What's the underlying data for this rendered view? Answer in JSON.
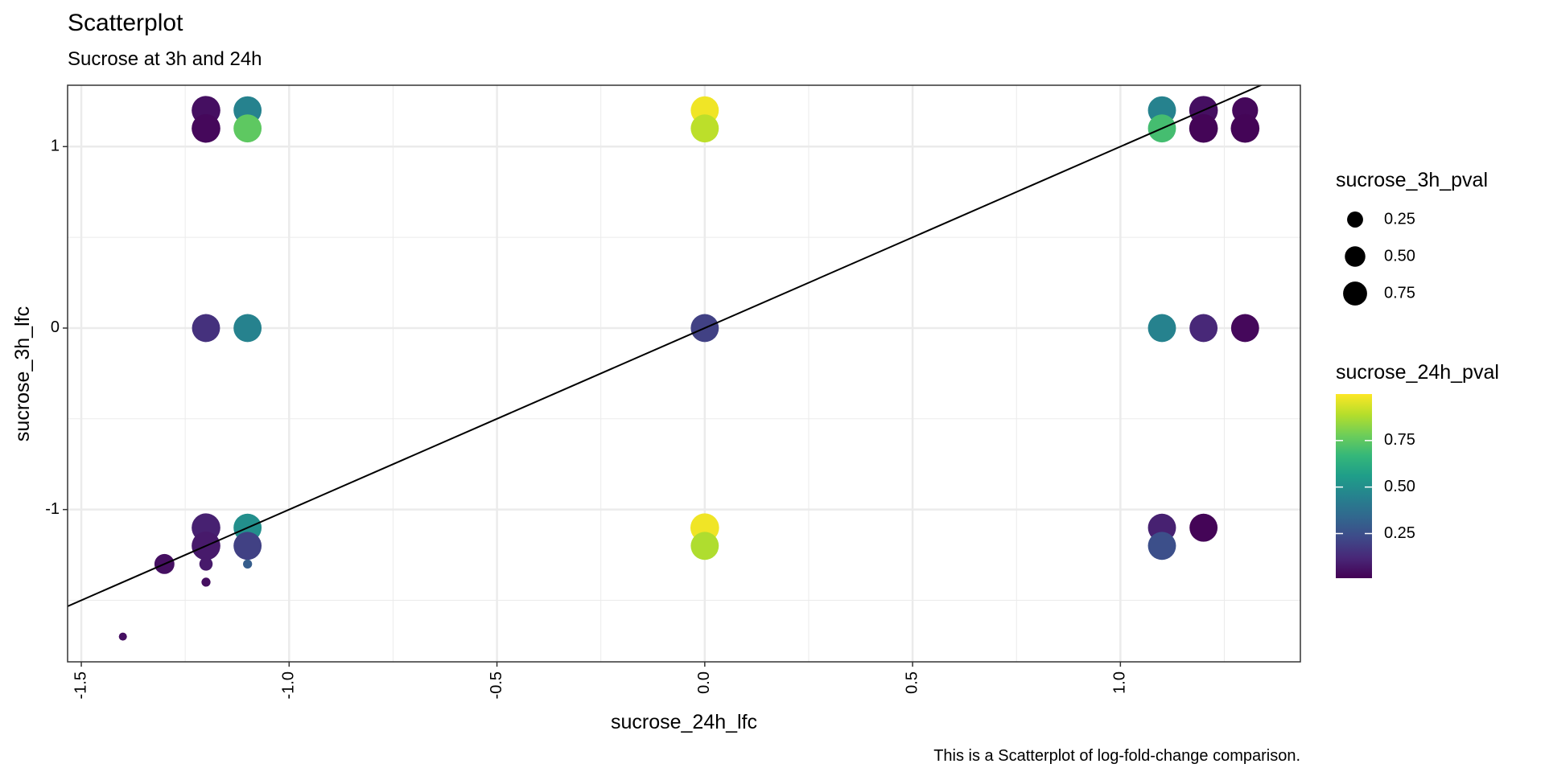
{
  "chart_data": {
    "type": "scatter",
    "title": "Scatterplot",
    "subtitle": "Sucrose at 3h and 24h",
    "x_label": "sucrose_24h_lfc",
    "y_label": "sucrose_3h_lfc",
    "caption": "This is a Scatterplot of log-fold-change comparison.",
    "xlim": [
      -1.533,
      1.433
    ],
    "ylim": [
      -1.839,
      1.338
    ],
    "xticks": [
      -1.5,
      {
        "value": -1.0,
        "label": "-1.0"
      },
      -0.5,
      {
        "value": 0.0,
        "label": "0.0"
      },
      0.5,
      {
        "value": 1.0,
        "label": "1.0"
      }
    ],
    "yticks": [
      -1,
      0,
      1
    ],
    "xminorticks": [
      -1.25,
      -0.75,
      -0.25,
      0.25,
      0.75,
      1.25
    ],
    "yminorticks": [
      -1.5,
      -0.5,
      0.5
    ],
    "grid": true,
    "reference_line": {
      "slope": 1,
      "intercept": 0,
      "color": "#000000"
    },
    "series": [
      {
        "x": [
          -1.2,
          -1.2,
          -1.1,
          -1.1,
          0,
          0,
          1.1,
          1.1,
          1.2,
          1.2,
          1.3,
          1.3,
          -1.2,
          -1.1,
          0,
          1.1,
          1.2,
          1.3,
          -1.2,
          -1.2,
          -1.1,
          -1.1,
          -1.3,
          -1.2,
          -1.2,
          -1.1,
          -1.4,
          0,
          0,
          1.1,
          1.1,
          1.2
        ],
        "values": [
          1.2,
          1.1,
          1.2,
          1.1,
          1.2,
          1.1,
          1.2,
          1.1,
          1.2,
          1.1,
          1.2,
          1.1,
          0,
          0,
          0,
          0,
          0,
          0,
          -1.1,
          -1.2,
          -1.1,
          -1.2,
          -1.3,
          -1.3,
          -1.4,
          -1.3,
          -1.7,
          -1.1,
          -1.2,
          -1.1,
          -1.2,
          -1.1
        ],
        "size": [
          0.9,
          0.9,
          0.85,
          0.85,
          0.85,
          0.85,
          0.85,
          0.85,
          0.9,
          0.9,
          0.7,
          0.9,
          0.85,
          0.85,
          0.85,
          0.85,
          0.85,
          0.85,
          0.9,
          0.9,
          0.85,
          0.85,
          0.35,
          0.1,
          0.02,
          0.02,
          0.01,
          0.9,
          0.85,
          0.85,
          0.85,
          0.85
        ],
        "color": [
          0.05,
          0.03,
          0.45,
          0.75,
          0.98,
          0.9,
          0.45,
          0.7,
          0.05,
          0.02,
          0.03,
          0.02,
          0.15,
          0.45,
          0.2,
          0.45,
          0.12,
          0.03,
          0.1,
          0.08,
          0.5,
          0.2,
          0.05,
          0.08,
          0.05,
          0.3,
          0.05,
          0.98,
          0.88,
          0.1,
          0.25,
          0.02
        ]
      }
    ],
    "size_legend": {
      "title": "sucrose_3h_pval",
      "breaks": [
        0.25,
        {
          "value": 0.5,
          "label": "0.50"
        },
        0.75
      ]
    },
    "color_legend": {
      "title": "sucrose_24h_pval",
      "colorlim": [
        0.01,
        1.0
      ],
      "breaks": [
        0.25,
        {
          "value": 0.5,
          "label": "0.50"
        },
        0.75
      ],
      "colormap": [
        "#440154",
        "#482878",
        "#3e4a89",
        "#31688e",
        "#26828e",
        "#1f9e89",
        "#35b779",
        "#6ece58",
        "#b5de2b",
        "#fde725"
      ]
    }
  }
}
